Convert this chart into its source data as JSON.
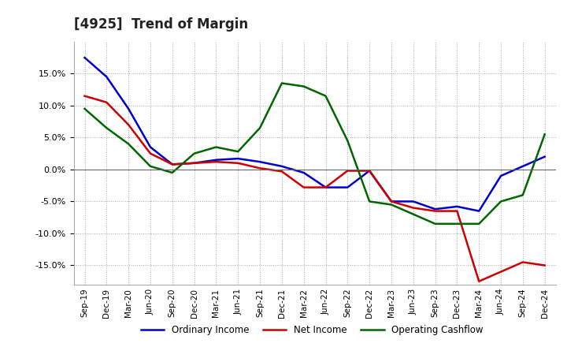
{
  "title": "[4925]  Trend of Margin",
  "x_labels": [
    "Sep-19",
    "Dec-19",
    "Mar-20",
    "Jun-20",
    "Sep-20",
    "Dec-20",
    "Mar-21",
    "Jun-21",
    "Sep-21",
    "Dec-21",
    "Mar-22",
    "Jun-22",
    "Sep-22",
    "Dec-22",
    "Mar-23",
    "Jun-23",
    "Sep-23",
    "Dec-23",
    "Mar-24",
    "Jun-24",
    "Sep-24",
    "Dec-24"
  ],
  "ordinary_income": [
    17.5,
    14.5,
    9.5,
    3.5,
    0.8,
    1.0,
    1.5,
    1.7,
    1.2,
    0.5,
    -0.5,
    -2.8,
    -2.8,
    -0.2,
    -5.0,
    -5.0,
    -6.2,
    -5.8,
    -6.5,
    -1.0,
    0.5,
    2.0
  ],
  "net_income": [
    11.5,
    10.5,
    7.0,
    2.5,
    0.8,
    1.0,
    1.2,
    1.0,
    0.2,
    -0.3,
    -2.8,
    -2.8,
    -0.2,
    -0.2,
    -5.0,
    -6.0,
    -6.5,
    -6.5,
    -17.5,
    -16.0,
    -14.5,
    -15.0
  ],
  "operating_cashflow": [
    9.5,
    6.5,
    4.0,
    0.5,
    -0.5,
    2.5,
    3.5,
    2.8,
    6.5,
    13.5,
    13.0,
    11.5,
    4.5,
    -5.0,
    -5.5,
    -7.0,
    -8.5,
    -8.5,
    -8.5,
    -5.0,
    -4.0,
    5.5
  ],
  "colors": {
    "ordinary_income": "#0000cc",
    "net_income": "#cc0000",
    "operating_cashflow": "#006600"
  },
  "ylim": [
    -18,
    20
  ],
  "yticks": [
    -15.0,
    -10.0,
    -5.0,
    0.0,
    5.0,
    10.0,
    15.0
  ],
  "background_color": "#ffffff",
  "grid_color": "#aaaaaa",
  "line_width": 1.8
}
